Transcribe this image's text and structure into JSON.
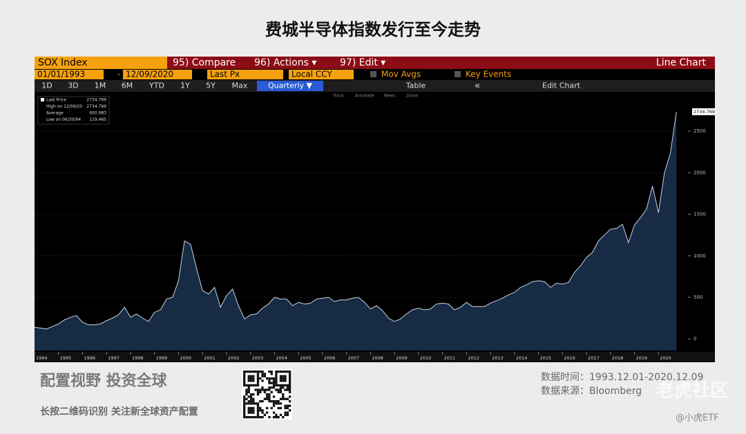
{
  "title": "费城半导体指数发行至今走势",
  "toolbar": {
    "security": "SOX Index",
    "menus": [
      "95) Compare",
      "96) Actions ▾",
      "97) Edit ▾"
    ],
    "chart_type": "Line Chart",
    "start_date": "01/01/1993",
    "date_separator": "-",
    "end_date": "12/09/2020",
    "field": "Last Px",
    "currency": "Local CCY",
    "toggles": [
      "Mov Avgs",
      "Key Events"
    ],
    "periods": [
      "1D",
      "3D",
      "1M",
      "6M",
      "YTD",
      "1Y",
      "5Y",
      "Max"
    ],
    "frequency": "Quarterly ▼",
    "table": "Table",
    "back": "«",
    "edit_chart": "Edit Chart",
    "tools": [
      "Track",
      "Annotate",
      "News",
      "Zoom"
    ]
  },
  "chart_data": {
    "type": "area",
    "stats": [
      {
        "label": "Last Price",
        "value": "2734.769"
      },
      {
        "label": "High on 12/09/20",
        "value": "2734.769"
      },
      {
        "label": "Average",
        "value": "600.983"
      },
      {
        "label": "Low on 06/30/94",
        "value": "119.465"
      }
    ],
    "xlim": [
      1994,
      2021
    ],
    "xticks": [
      1994,
      1995,
      1996,
      1997,
      1998,
      1999,
      2000,
      2001,
      2002,
      2003,
      2004,
      2005,
      2006,
      2007,
      2008,
      2009,
      2010,
      2011,
      2012,
      2013,
      2014,
      2015,
      2016,
      2017,
      2018,
      2019,
      2020
    ],
    "ylim": [
      -140,
      2975
    ],
    "yticks": [
      0,
      500,
      1000,
      1500,
      2000,
      2500
    ],
    "grid": true,
    "series": [
      {
        "name": "SOX Index",
        "color": "#c9d6e6",
        "fill": "#172b45",
        "x": [
          1994.0,
          1994.25,
          1994.5,
          1994.75,
          1995.0,
          1995.25,
          1995.5,
          1995.75,
          1996.0,
          1996.25,
          1996.5,
          1996.75,
          1997.0,
          1997.25,
          1997.5,
          1997.75,
          1998.0,
          1998.25,
          1998.5,
          1998.75,
          1999.0,
          1999.25,
          1999.5,
          1999.75,
          2000.0,
          2000.25,
          2000.5,
          2000.75,
          2001.0,
          2001.25,
          2001.5,
          2001.75,
          2002.0,
          2002.25,
          2002.5,
          2002.75,
          2003.0,
          2003.25,
          2003.5,
          2003.75,
          2004.0,
          2004.25,
          2004.5,
          2004.75,
          2005.0,
          2005.25,
          2005.5,
          2005.75,
          2006.0,
          2006.25,
          2006.5,
          2006.75,
          2007.0,
          2007.25,
          2007.5,
          2007.75,
          2008.0,
          2008.25,
          2008.5,
          2008.75,
          2009.0,
          2009.25,
          2009.5,
          2009.75,
          2010.0,
          2010.25,
          2010.5,
          2010.75,
          2011.0,
          2011.25,
          2011.5,
          2011.75,
          2012.0,
          2012.25,
          2012.5,
          2012.75,
          2013.0,
          2013.25,
          2013.5,
          2013.75,
          2014.0,
          2014.25,
          2014.5,
          2014.75,
          2015.0,
          2015.25,
          2015.5,
          2015.75,
          2016.0,
          2016.25,
          2016.5,
          2016.75,
          2017.0,
          2017.25,
          2017.5,
          2017.75,
          2018.0,
          2018.25,
          2018.5,
          2018.75,
          2019.0,
          2019.25,
          2019.5,
          2019.75,
          2020.0,
          2020.25,
          2020.5,
          2020.75
        ],
        "values": [
          140,
          130,
          119.465,
          150,
          180,
          230,
          260,
          280,
          200,
          170,
          170,
          180,
          220,
          250,
          290,
          380,
          260,
          300,
          250,
          210,
          320,
          350,
          480,
          500,
          700,
          1180,
          1140,
          850,
          580,
          540,
          620,
          380,
          520,
          600,
          400,
          240,
          290,
          300,
          370,
          420,
          500,
          480,
          480,
          400,
          440,
          420,
          430,
          480,
          490,
          500,
          450,
          470,
          470,
          490,
          500,
          440,
          360,
          400,
          340,
          250,
          210,
          240,
          300,
          350,
          370,
          350,
          360,
          420,
          430,
          420,
          350,
          380,
          440,
          390,
          390,
          390,
          430,
          460,
          490,
          530,
          560,
          620,
          650,
          690,
          700,
          690,
          620,
          670,
          660,
          680,
          800,
          880,
          980,
          1040,
          1180,
          1250,
          1320,
          1330,
          1380,
          1160,
          1370,
          1460,
          1560,
          1840,
          1520,
          2000,
          2240,
          2734.769
        ]
      }
    ]
  },
  "footer": {
    "slogan": "配置视野  投资全球",
    "cta": "长按二维码识别  关注新全球资产配置",
    "period": "数据时间：1993.12.01-2020.12.09",
    "source": "数据来源：Bloomberg",
    "watermark": "老虎社区",
    "handle": "@小虎ETF"
  }
}
